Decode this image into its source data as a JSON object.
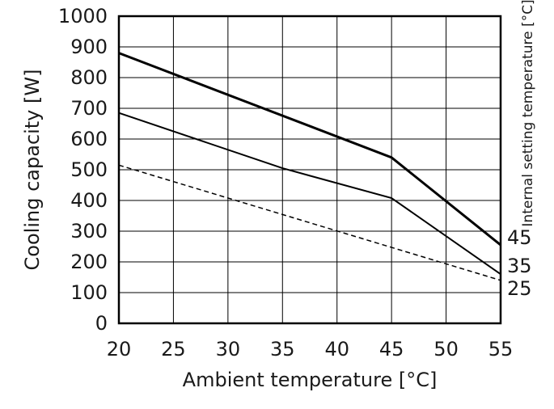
{
  "chart_data": {
    "type": "line",
    "xlabel": "Ambient temperature [°C]",
    "ylabel": "Cooling capacity [W]",
    "right_label": "Internal setting temperature [°C]",
    "xlim": [
      20,
      55
    ],
    "ylim": [
      0,
      1000
    ],
    "xticks": [
      "20",
      "25",
      "30",
      "35",
      "40",
      "45",
      "50",
      "55"
    ],
    "yticks": [
      "0",
      "100",
      "200",
      "300",
      "400",
      "500",
      "600",
      "700",
      "800",
      "900",
      "1000"
    ],
    "grid": true,
    "series": [
      {
        "name": "45",
        "style": "solid-thick",
        "x": [
          20,
          45,
          55
        ],
        "y": [
          880,
          540,
          255
        ]
      },
      {
        "name": "35",
        "style": "solid",
        "x": [
          20,
          35,
          45,
          55
        ],
        "y": [
          685,
          505,
          408,
          160
        ]
      },
      {
        "name": "25",
        "style": "dashed",
        "x": [
          20,
          55
        ],
        "y": [
          515,
          140
        ]
      }
    ]
  }
}
